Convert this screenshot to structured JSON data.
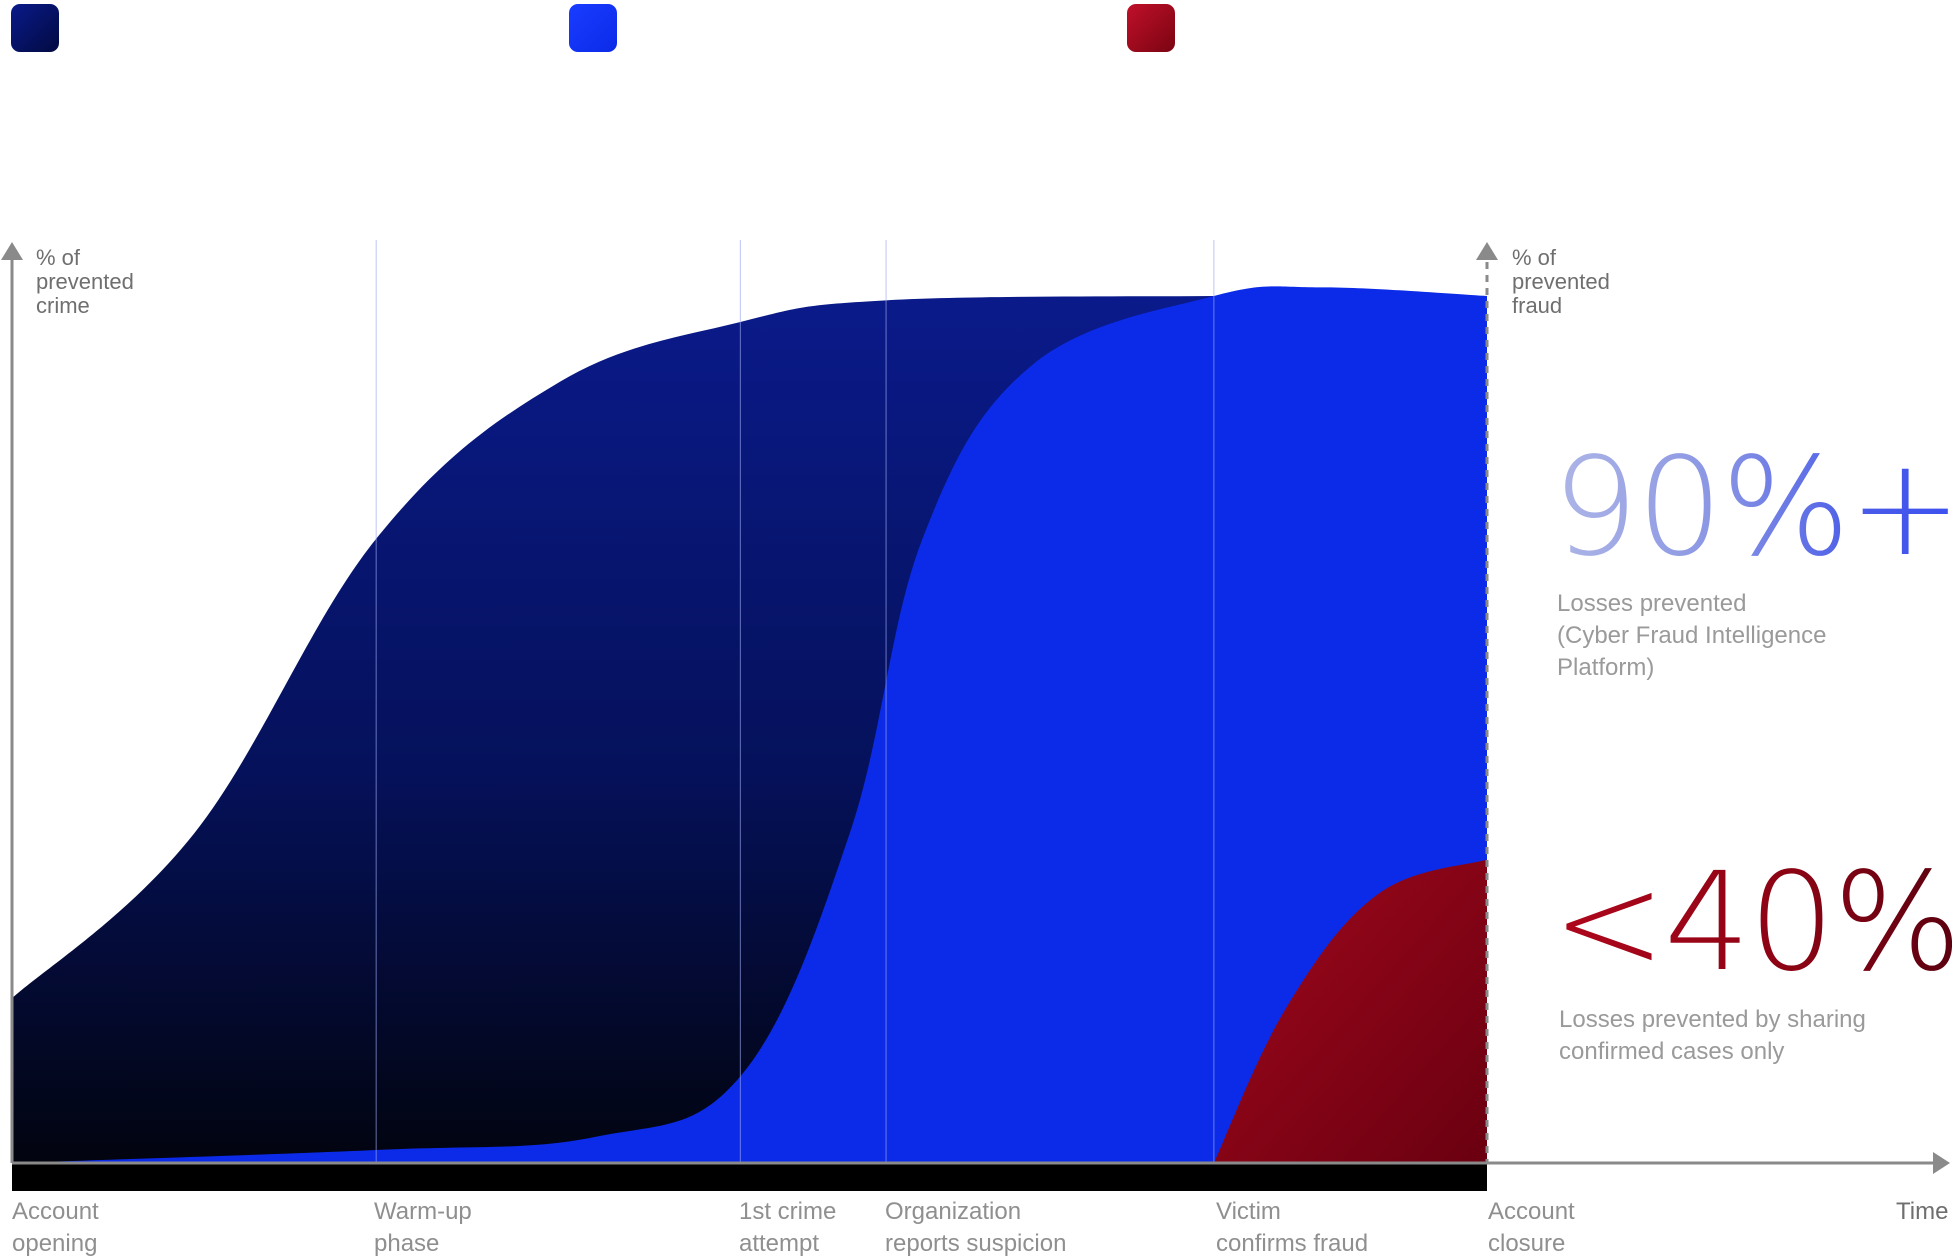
{
  "legend": {
    "colors": [
      "#0a1a6e",
      "#0b2be8",
      "#a0081c"
    ]
  },
  "chart_data": {
    "type": "area",
    "title": "",
    "ylabel_left": "% of\nprevented\ncrime",
    "ylabel_right": "% of\nprevented\nfraud",
    "xlabel": "Time",
    "x_ticks": [
      {
        "id": "account-opening",
        "label": "Account\nopening"
      },
      {
        "id": "warm-up",
        "label": "Warm-up\nphase"
      },
      {
        "id": "first-crime",
        "label": "1st crime\nattempt"
      },
      {
        "id": "org-reports",
        "label": "Organization\nreports suspicion"
      },
      {
        "id": "victim-confirms",
        "label": "Victim\nconfirms fraud"
      },
      {
        "id": "account-closure",
        "label": "Account\nclosure"
      }
    ],
    "x_tick_positions": [
      0,
      1,
      2,
      2.4,
      3.3,
      4.05
    ],
    "ylim": [
      0,
      100
    ],
    "grid": "vertical",
    "series": [
      {
        "color_top": "#0a1a8a",
        "color_bottom": "#000000",
        "x": [
          0,
          0.5,
          1,
          1.5,
          2,
          2.4,
          3.3,
          4.05
        ],
        "y": [
          19,
          38,
          72,
          90,
          97,
          99.5,
          100,
          100
        ]
      },
      {
        "color": "#0b2be8",
        "x": [
          0,
          1,
          1.6,
          2,
          2.3,
          2.5,
          2.8,
          3.3,
          3.6,
          4.05
        ],
        "y": [
          0,
          1.5,
          3,
          10,
          38,
          72,
          92,
          100,
          101,
          100
        ]
      },
      {
        "color_top": "#a0081c",
        "color_bottom": "#6a0010",
        "x": [
          3.3,
          3.5,
          3.75,
          4.05
        ],
        "y": [
          0,
          18,
          31,
          35
        ]
      }
    ]
  },
  "stats": [
    {
      "value": "90%+",
      "caption": "Losses prevented\n(Cyber Fraud Intelligence\nPlatform)"
    },
    {
      "value": "<40%",
      "caption": "Losses prevented by sharing\nconfirmed cases only"
    }
  ]
}
